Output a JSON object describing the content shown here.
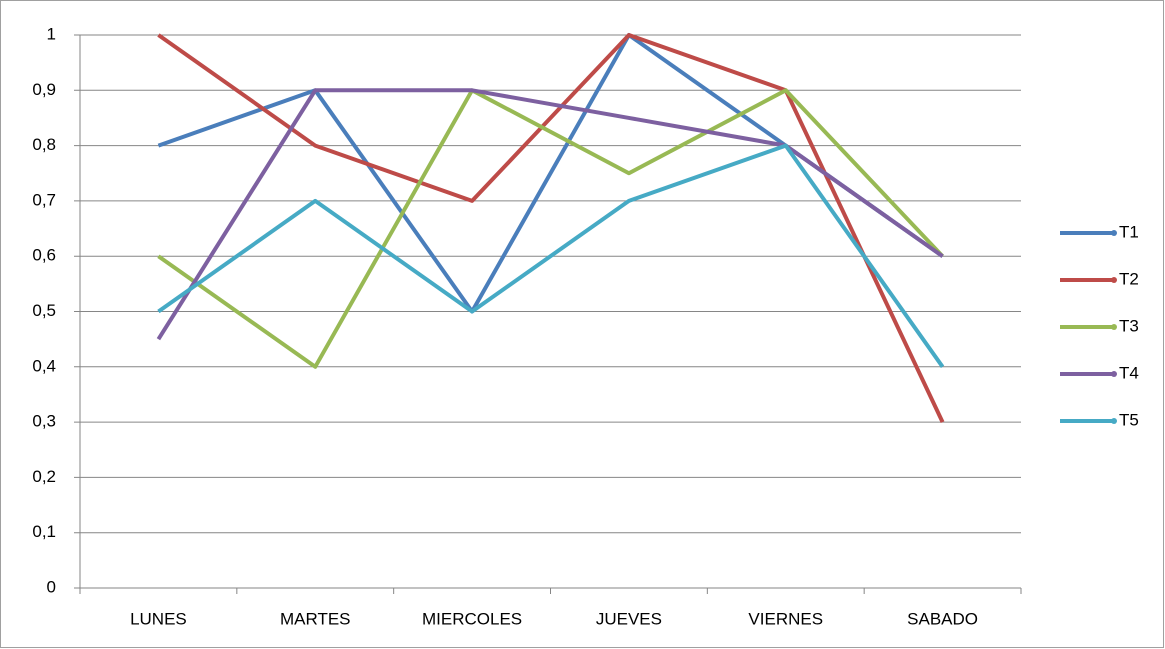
{
  "chart_data": {
    "type": "line",
    "categories": [
      "LUNES",
      "MARTES",
      "MIERCOLES",
      "JUEVES",
      "VIERNES",
      "SABADO"
    ],
    "series": [
      {
        "name": "T1",
        "color": "#4a7ebb",
        "values": [
          0.8,
          0.9,
          0.5,
          1,
          0.8,
          0.6
        ]
      },
      {
        "name": "T2",
        "color": "#be4b48",
        "values": [
          1,
          0.8,
          0.7,
          1,
          0.9,
          0.3
        ]
      },
      {
        "name": "T3",
        "color": "#98b954",
        "values": [
          0.6,
          0.4,
          0.9,
          0.75,
          0.9,
          0.6
        ]
      },
      {
        "name": "T4",
        "color": "#7d60a0",
        "values": [
          0.45,
          0.9,
          0.9,
          0.85,
          0.8,
          0.6
        ]
      },
      {
        "name": "T5",
        "color": "#46aac5",
        "values": [
          0.5,
          0.7,
          0.5,
          0.7,
          0.8,
          0.4
        ]
      }
    ],
    "ylim": [
      0,
      1
    ],
    "yticks": [
      0,
      {
        "value": 0.1,
        "label": "0,1"
      },
      {
        "value": 0.2,
        "label": "0,2"
      },
      {
        "value": 0.3,
        "label": "0,3"
      },
      {
        "value": 0.4,
        "label": "0,4"
      },
      {
        "value": 0.5,
        "label": "0,5"
      },
      {
        "value": 0.6,
        "label": "0,6"
      },
      {
        "value": 0.7,
        "label": "0,7"
      },
      {
        "value": 0.8,
        "label": "0,8"
      },
      {
        "value": 0.9,
        "label": "0,9"
      },
      1
    ],
    "grid": true,
    "legend": "right"
  }
}
